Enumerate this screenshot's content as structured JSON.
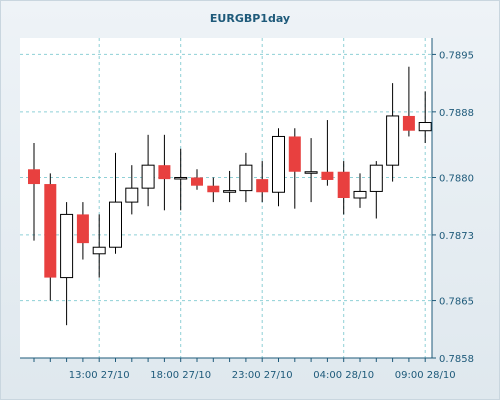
{
  "chart_data": {
    "type": "candlestick",
    "title": "EURGBP1day",
    "ylim": [
      0.7858,
      0.7897
    ],
    "yticks": [
      "0.7895",
      "0.7888",
      "0.7880",
      "0.7873",
      "0.7865",
      "0.7858"
    ],
    "xticks": [
      "13:00 27/10",
      "18:00 27/10",
      "23:00 27/10",
      "04:00 28/10",
      "09:00 28/10"
    ],
    "grid": true,
    "colors": {
      "up_fill": "#ffffff",
      "down_fill": "#e8403f",
      "grid": "#8fd0d6",
      "plot_bg": "#ffffff",
      "axis": "#1e5a7a"
    },
    "candles": [
      {
        "open": 0.7881,
        "high": 0.78842,
        "low": 0.78723,
        "close": 0.78792
      },
      {
        "open": 0.78792,
        "high": 0.78805,
        "low": 0.7865,
        "close": 0.78678
      },
      {
        "open": 0.78678,
        "high": 0.7877,
        "low": 0.7862,
        "close": 0.78755
      },
      {
        "open": 0.78755,
        "high": 0.7877,
        "low": 0.787,
        "close": 0.7872
      },
      {
        "open": 0.78707,
        "high": 0.78755,
        "low": 0.78678,
        "close": 0.78715
      },
      {
        "open": 0.78715,
        "high": 0.7883,
        "low": 0.78707,
        "close": 0.7877
      },
      {
        "open": 0.7877,
        "high": 0.78815,
        "low": 0.78755,
        "close": 0.78787
      },
      {
        "open": 0.78787,
        "high": 0.78852,
        "low": 0.78765,
        "close": 0.78815
      },
      {
        "open": 0.78815,
        "high": 0.78852,
        "low": 0.7876,
        "close": 0.78798
      },
      {
        "open": 0.788,
        "high": 0.78835,
        "low": 0.7876,
        "close": 0.788
      },
      {
        "open": 0.788,
        "high": 0.7881,
        "low": 0.78785,
        "close": 0.7879
      },
      {
        "open": 0.7879,
        "high": 0.788,
        "low": 0.7877,
        "close": 0.78782
      },
      {
        "open": 0.78782,
        "high": 0.78808,
        "low": 0.7877,
        "close": 0.78784
      },
      {
        "open": 0.78784,
        "high": 0.7883,
        "low": 0.7877,
        "close": 0.78815
      },
      {
        "open": 0.78798,
        "high": 0.7882,
        "low": 0.7877,
        "close": 0.78782
      },
      {
        "open": 0.78782,
        "high": 0.7886,
        "low": 0.78765,
        "close": 0.7885
      },
      {
        "open": 0.7885,
        "high": 0.7886,
        "low": 0.78762,
        "close": 0.78807
      },
      {
        "open": 0.78807,
        "high": 0.78848,
        "low": 0.7877,
        "close": 0.78807
      },
      {
        "open": 0.78807,
        "high": 0.7887,
        "low": 0.7879,
        "close": 0.78797
      },
      {
        "open": 0.78807,
        "high": 0.7882,
        "low": 0.78755,
        "close": 0.78775
      },
      {
        "open": 0.78775,
        "high": 0.78805,
        "low": 0.78763,
        "close": 0.78783
      },
      {
        "open": 0.78783,
        "high": 0.7882,
        "low": 0.7875,
        "close": 0.78815
      },
      {
        "open": 0.78815,
        "high": 0.78915,
        "low": 0.78795,
        "close": 0.78875
      },
      {
        "open": 0.78875,
        "high": 0.78935,
        "low": 0.7885,
        "close": 0.78857
      },
      {
        "open": 0.78857,
        "high": 0.78905,
        "low": 0.78842,
        "close": 0.78867
      }
    ]
  }
}
